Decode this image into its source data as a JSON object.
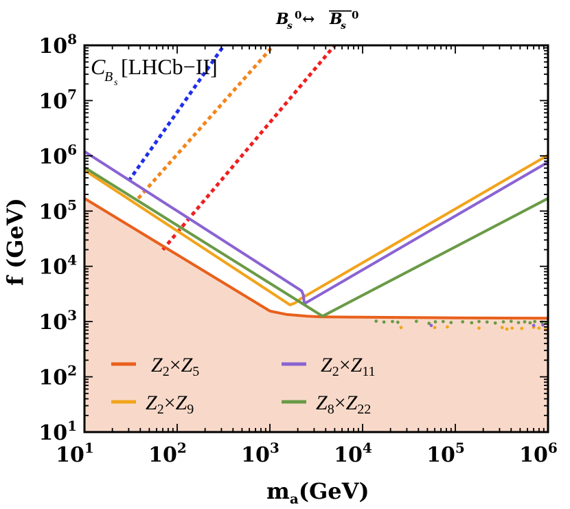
{
  "chart_data": {
    "type": "line",
    "title_base": "B",
    "title_sub": "s",
    "title_sup": "0",
    "title_arrow": "↔",
    "title_bar_base": "B",
    "title_bar_sub": "s",
    "title_bar_sup": "0",
    "label_base": "C",
    "label_sub_base": "B",
    "label_sub_sub": "s",
    "label_text": "[LHCb−II]",
    "xlabel_main": "m",
    "xlabel_sub": "a",
    "xlabel_unit": "(GeV)",
    "ylabel": "f (GeV)",
    "xscale": "log",
    "yscale": "log",
    "xlim": [
      10,
      1000000
    ],
    "ylim": [
      10,
      100000000
    ],
    "x_ticks": [
      {
        "value": 10,
        "base": "10",
        "exp": "1"
      },
      {
        "value": 100,
        "base": "10",
        "exp": "2"
      },
      {
        "value": 1000,
        "base": "10",
        "exp": "3"
      },
      {
        "value": 10000,
        "base": "10",
        "exp": "4"
      },
      {
        "value": 100000,
        "base": "10",
        "exp": "5"
      },
      {
        "value": 1000000,
        "base": "10",
        "exp": "6"
      }
    ],
    "y_ticks": [
      {
        "value": 10,
        "base": "10",
        "exp": "1"
      },
      {
        "value": 100,
        "base": "10",
        "exp": "2"
      },
      {
        "value": 1000,
        "base": "10",
        "exp": "3"
      },
      {
        "value": 10000,
        "base": "10",
        "exp": "4"
      },
      {
        "value": 100000,
        "base": "10",
        "exp": "5"
      },
      {
        "value": 1000000,
        "base": "10",
        "exp": "6"
      },
      {
        "value": 10000000,
        "base": "10",
        "exp": "7"
      },
      {
        "value": 100000000,
        "base": "10",
        "exp": "8"
      }
    ],
    "shaded_region": {
      "color": "#f8d9c9",
      "description_boundary_series": "Z2xZ5"
    },
    "series": [
      {
        "id": "Z2xZ5",
        "legend_a": "Z",
        "legend_a_sub": "2",
        "legend_b": "Z",
        "legend_b_sub": "5",
        "color": "#e8601c",
        "points": [
          [
            10,
            170000
          ],
          [
            1000,
            1550
          ],
          [
            1500,
            1350
          ],
          [
            2500,
            1250
          ],
          [
            3500,
            1220
          ],
          [
            10000,
            1200
          ],
          [
            100000,
            1170
          ],
          [
            1000000,
            1150
          ]
        ]
      },
      {
        "id": "Z2xZ9",
        "legend_a": "Z",
        "legend_a_sub": "2",
        "legend_b": "Z",
        "legend_b_sub": "9",
        "color": "#f2a31b",
        "points": [
          [
            10,
            550000
          ],
          [
            1650,
            2000
          ],
          [
            1900,
            2200
          ],
          [
            2150,
            2600
          ],
          [
            1000000,
            1030000
          ]
        ]
      },
      {
        "id": "Z2xZ11",
        "legend_a": "Z",
        "legend_a_sub": "2",
        "legend_b": "Z",
        "legend_b_sub": "11",
        "color": "#8a63d2",
        "points": [
          [
            10,
            1200000
          ],
          [
            2200,
            3600
          ],
          [
            2300,
            3000
          ],
          [
            2350,
            2100
          ],
          [
            1000000,
            770000
          ]
        ]
      },
      {
        "id": "Z8xZ22",
        "legend_a": "Z",
        "legend_a_sub": "8",
        "legend_b": "Z",
        "legend_b_sub": "22",
        "color": "#6a9a47",
        "points": [
          [
            10,
            620000
          ],
          [
            3700,
            1250
          ],
          [
            1000000,
            170000
          ]
        ]
      }
    ],
    "dotted_lines": [
      {
        "color": "#1f2fe8",
        "points": [
          [
            30,
            350000
          ],
          [
            320,
            100000000
          ]
        ]
      },
      {
        "color": "#f2851b",
        "points": [
          [
            38,
            170000
          ],
          [
            1100,
            100000000
          ]
        ]
      },
      {
        "color": "#ef1f1f",
        "points": [
          [
            70,
            20000
          ],
          [
            5000,
            100000000
          ]
        ]
      }
    ],
    "scatter_points": [
      {
        "color": "#6a9a47",
        "points": [
          [
            14000,
            1020
          ],
          [
            17000,
            980
          ],
          [
            21000,
            1000
          ],
          [
            24000,
            970
          ],
          [
            38000,
            1010
          ],
          [
            52000,
            930
          ],
          [
            61000,
            990
          ],
          [
            74000,
            1000
          ],
          [
            90000,
            960
          ],
          [
            120000,
            990
          ],
          [
            150000,
            950
          ],
          [
            180000,
            1000
          ],
          [
            220000,
            980
          ],
          [
            270000,
            940
          ],
          [
            330000,
            990
          ],
          [
            400000,
            1010
          ],
          [
            480000,
            960
          ],
          [
            560000,
            990
          ],
          [
            640000,
            950
          ],
          [
            720000,
            1000
          ],
          [
            860000,
            970
          ],
          [
            950000,
            940
          ]
        ]
      },
      {
        "color": "#f2a31b",
        "points": [
          [
            26000,
            780
          ],
          [
            60000,
            780
          ],
          [
            82000,
            800
          ],
          [
            180000,
            760
          ],
          [
            320000,
            780
          ],
          [
            360000,
            730
          ],
          [
            410000,
            760
          ],
          [
            520000,
            750
          ],
          [
            700000,
            790
          ],
          [
            800000,
            760
          ],
          [
            940000,
            720
          ]
        ]
      },
      {
        "color": "#8a63d2",
        "points": [
          [
            55000,
            850
          ],
          [
            700000,
            850
          ],
          [
            880000,
            870
          ]
        ]
      }
    ]
  }
}
